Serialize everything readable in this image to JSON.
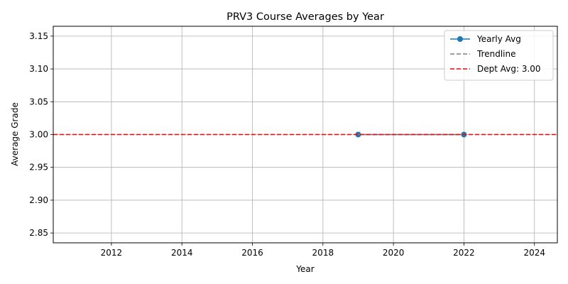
{
  "chart_data": {
    "type": "line",
    "title": "PRV3 Course Averages by Year",
    "xlabel": "Year",
    "ylabel": "Average Grade",
    "xlim": [
      2010.35,
      2024.65
    ],
    "ylim": [
      2.835,
      3.165
    ],
    "xticks": [
      2012,
      2014,
      2016,
      2018,
      2020,
      2022,
      2024
    ],
    "yticks": [
      2.85,
      2.9,
      2.95,
      3.0,
      3.05,
      3.1,
      3.15
    ],
    "grid": true,
    "legend_position": "top-right",
    "series": [
      {
        "name": "Yearly Avg",
        "style": "line-marker",
        "color": "#1f77b4",
        "points": [
          {
            "x": 2019,
            "y": 3.0
          },
          {
            "x": 2022,
            "y": 3.0
          }
        ]
      },
      {
        "name": "Trendline",
        "style": "dashed",
        "color": "#808080",
        "points": [
          {
            "x": 2019,
            "y": 3.0
          },
          {
            "x": 2022,
            "y": 3.0
          }
        ]
      },
      {
        "name": "Dept Avg: 3.00",
        "style": "hline-dashed",
        "color": "#ff0000",
        "value": 3.0
      }
    ]
  }
}
